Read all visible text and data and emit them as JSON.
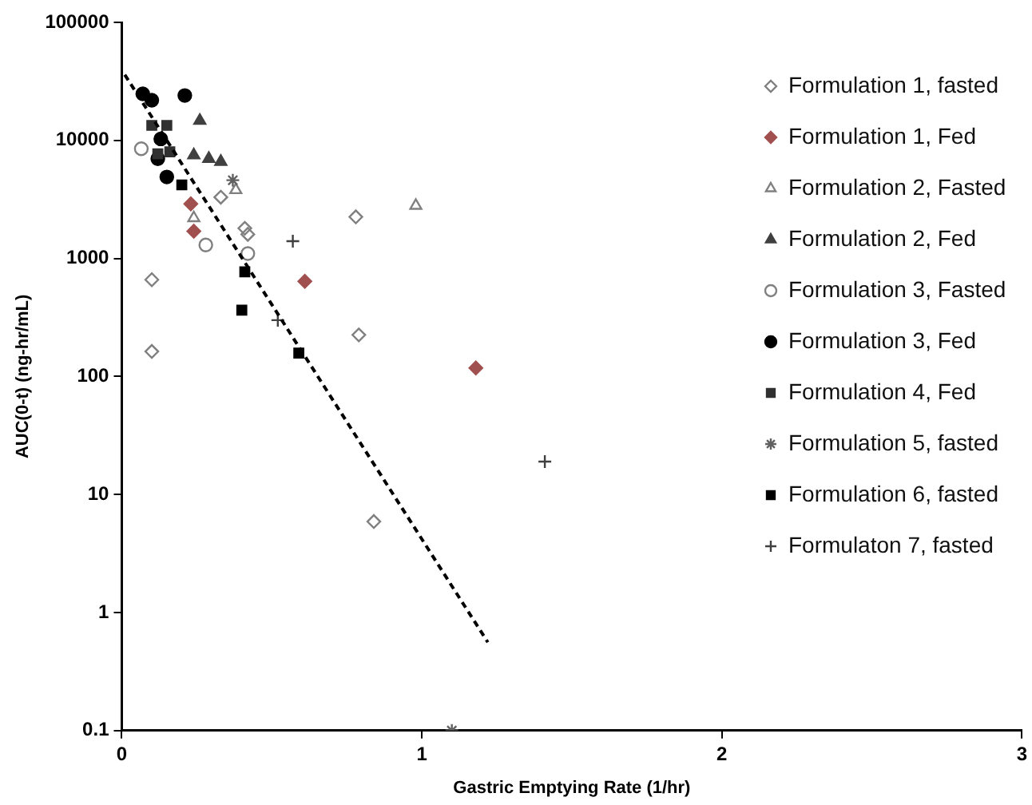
{
  "chart_data": {
    "type": "scatter",
    "xlabel": "Gastric Emptying Rate (1/hr)",
    "ylabel": "AUC(0-t) (ng-hr/mL)",
    "log": "y",
    "xlim": [
      0,
      3
    ],
    "xticks": [
      0,
      1,
      2,
      3
    ],
    "ylim": [
      0.1,
      100000
    ],
    "yticks": [
      0.1,
      1,
      10,
      100,
      1000,
      10000,
      100000
    ],
    "grid": false,
    "legend": "top right",
    "series": [
      {
        "name": "Formulation 1, fasted",
        "color": "#808080",
        "marker": "diamond-open",
        "x": [
          0.33,
          0.41,
          0.42,
          0.1,
          0.1,
          0.78,
          0.79,
          0.84
        ],
        "values": [
          3300,
          1800,
          1600,
          660,
          163,
          2250,
          225,
          5.9
        ]
      },
      {
        "name": "Formulation 1, Fed",
        "color": "#a0504f",
        "marker": "diamond",
        "x": [
          0.23,
          0.24,
          0.61,
          1.18
        ],
        "values": [
          2900,
          1700,
          640,
          118
        ]
      },
      {
        "name": "Formulation 2, Fasted",
        "color": "#808080",
        "marker": "triangle-open",
        "x": [
          0.38,
          0.24,
          0.98
        ],
        "values": [
          3800,
          2200,
          2800
        ]
      },
      {
        "name": "Formulation 2, Fed",
        "color": "#404040",
        "marker": "triangle",
        "x": [
          0.26,
          0.24,
          0.29,
          0.33
        ],
        "values": [
          14700,
          7500,
          7000,
          6600
        ]
      },
      {
        "name": "Formulation 3, Fasted",
        "color": "#808080",
        "marker": "circle-open",
        "x": [
          0.065,
          0.28,
          0.42
        ],
        "values": [
          8500,
          1300,
          1100
        ]
      },
      {
        "name": "Formulation 3, Fed",
        "color": "#000000",
        "marker": "circle",
        "x": [
          0.07,
          0.1,
          0.21,
          0.13,
          0.12,
          0.15
        ],
        "values": [
          24800,
          21900,
          24000,
          10300,
          7000,
          4900
        ]
      },
      {
        "name": "Formulation 4, Fed",
        "color": "#303030",
        "marker": "square",
        "x": [
          0.1,
          0.15,
          0.12,
          0.16
        ],
        "values": [
          13400,
          13400,
          7700,
          8000
        ]
      },
      {
        "name": "Formulation 5, fasted",
        "color": "#606060",
        "marker": "cross",
        "x": [
          0.37,
          1.1
        ],
        "values": [
          4600,
          0.1
        ]
      },
      {
        "name": "Formulation 6, fasted",
        "color": "#000000",
        "marker": "square",
        "x": [
          0.2,
          0.41,
          0.4,
          0.59
        ],
        "values": [
          4200,
          770,
          365,
          158
        ]
      },
      {
        "name": "Formulaton 7, fasted",
        "color": "#404040",
        "marker": "cross",
        "x": [
          0.57,
          0.52,
          1.41
        ],
        "values": [
          1400,
          300,
          19
        ]
      },
      {
        "type": "line",
        "color": "#000000",
        "marker": "none",
        "line_style": "dashed",
        "x": [
          0.01,
          1.22
        ],
        "values": [
          36000,
          0.56
        ]
      }
    ]
  }
}
